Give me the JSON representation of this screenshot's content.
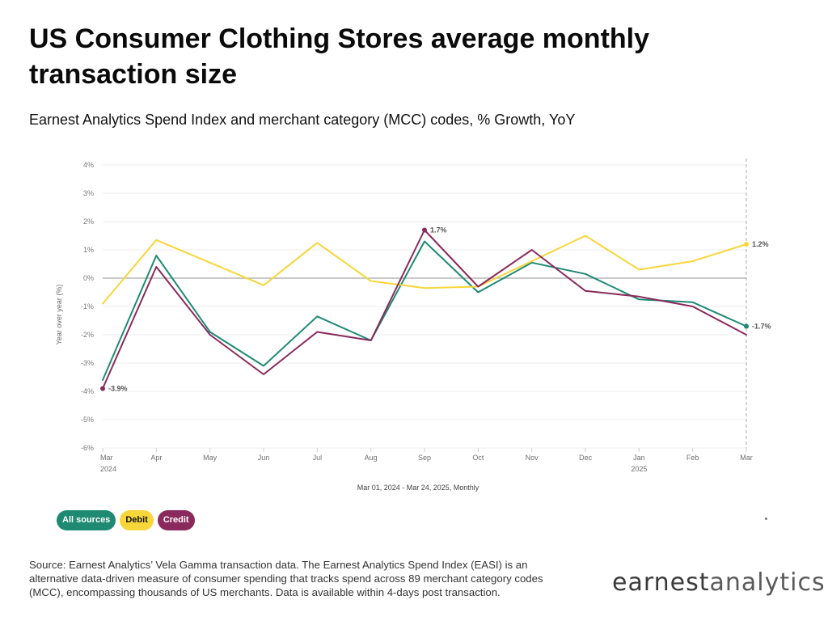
{
  "header": {
    "title": "US Consumer Clothing Stores average monthly transaction size",
    "subtitle": "Earnest Analytics Spend Index and merchant category (MCC) codes, % Growth, YoY"
  },
  "legend": {
    "all_sources": "All sources",
    "debit": "Debit",
    "credit": "Credit"
  },
  "footer": {
    "source": "Source: Earnest Analytics’ Vela Gamma transaction data. The Earnest Analytics Spend Index (EASI) is an alternative data-driven measure of consumer spending that tracks spend across 89 merchant category codes (MCC), encompassing thousands of US merchants. Data is available within 4-days post transaction.",
    "logo_part1": "earnest",
    "logo_part2": "analytics"
  },
  "colors": {
    "all_sources": "#1e8a72",
    "debit": "#f7d63a",
    "credit": "#8a2a5c"
  },
  "chart_data": {
    "type": "line",
    "xlabel": "Mar 01, 2024 - Mar 24, 2025, Monthly",
    "ylabel": "Year over year (%)",
    "categories": [
      "Mar",
      "Apr",
      "May",
      "Jun",
      "Jul",
      "Aug",
      "Sep",
      "Oct",
      "Nov",
      "Dec",
      "Jan",
      "Feb",
      "Mar"
    ],
    "year_labels": [
      "2024",
      "",
      "",
      "",
      "",
      "",
      "",
      "",
      "",
      "",
      "2025",
      "",
      ""
    ],
    "y_ticks": [
      "4%",
      "3%",
      "2%",
      "1%",
      "0%",
      "-1%",
      "-2%",
      "-3%",
      "-4%",
      "-5%",
      "-6%"
    ],
    "ylim": [
      -6,
      4
    ],
    "grid": true,
    "series": [
      {
        "name": "All sources",
        "color": "#1e8a72",
        "values": [
          -3.6,
          0.8,
          -1.9,
          -3.1,
          -1.35,
          -2.2,
          1.3,
          -0.5,
          0.55,
          0.15,
          -0.75,
          -0.85,
          -1.7
        ],
        "end_label": "-1.7%"
      },
      {
        "name": "Debit",
        "color": "#f7d63a",
        "values": [
          -0.9,
          1.35,
          0.55,
          -0.25,
          1.25,
          -0.1,
          -0.35,
          -0.3,
          0.6,
          1.5,
          0.3,
          0.6,
          1.2
        ],
        "end_label": "1.2%"
      },
      {
        "name": "Credit",
        "color": "#8a2a5c",
        "values": [
          -3.9,
          0.4,
          -2.0,
          -3.4,
          -1.9,
          -2.2,
          1.7,
          -0.3,
          1.0,
          -0.45,
          -0.65,
          -1.0,
          -2.0
        ],
        "point_labels": [
          {
            "index": 0,
            "text": "-3.9%"
          },
          {
            "index": 6,
            "text": "1.7%"
          }
        ]
      }
    ]
  }
}
